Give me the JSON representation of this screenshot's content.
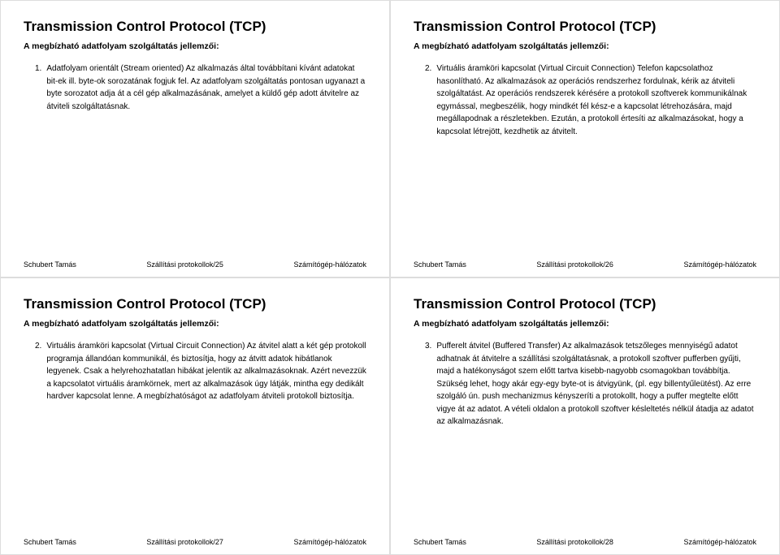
{
  "common": {
    "title": "Transmission Control Protocol (TCP)",
    "subtitle": "A megbízható adatfolyam szolgáltatás jellemzői:",
    "footer_author": "Schubert Tamás",
    "footer_right": "Számítógép-hálózatok",
    "footer_center_prefix": "Szállítási protokollok/"
  },
  "slides": [
    {
      "page": "25",
      "num": "1.",
      "text": "Adatfolyam orientált (Stream oriented)\nAz alkalmazás által továbbítani kívánt adatokat bit-ek ill. byte-ok sorozatának fogjuk fel.\nAz adatfolyam szolgáltatás pontosan ugyanazt a byte sorozatot adja át a cél gép alkalmazásának, amelyet a küldő gép adott átvitelre az átviteli szolgáltatásnak."
    },
    {
      "page": "26",
      "num": "2.",
      "text": "Virtuális áramköri kapcsolat (Virtual Circuit Connection)\nTelefon kapcsolathoz hasonlítható.\nAz alkalmazások az operációs rendszerhez fordulnak, kérik az átviteli szolgáltatást.\nAz operációs rendszerek kérésére a protokoll szoftverek kommunikálnak egymással, megbeszélik, hogy mindkét fél kész-e a kapcsolat létrehozására, majd megállapodnak a részletekben. Ezután, a protokoll értesíti az alkalmazásokat, hogy a kapcsolat létrejött, kezdhetik az átvitelt."
    },
    {
      "page": "27",
      "num": "2.",
      "text": "Virtuális áramköri kapcsolat (Virtual Circuit Connection)\nAz átvitel alatt a két gép protokoll programja állandóan kommunikál, és biztosítja, hogy az átvitt adatok hibátlanok legyenek.\nCsak a helyrehozhatatlan hibákat jelentik az alkalmazásoknak.\nAzért nevezzük a kapcsolatot virtuális áramkörnek, mert az alkalmazások úgy látják, mintha egy dedikált hardver kapcsolat lenne.\nA megbízhatóságot az adatfolyam átviteli protokoll biztosítja."
    },
    {
      "page": "28",
      "num": "3.",
      "text": "Pufferelt átvitel (Buffered Transfer)\nAz alkalmazások tetszőleges mennyiségű adatot adhatnak át átvitelre a szállítási szolgáltatásnak, a protokoll szoftver pufferben gyűjti, majd a hatékonyságot szem előtt tartva kisebb-nagyobb csomagokban továbbítja.\nSzükség lehet, hogy akár egy-egy byte-ot is átvigyünk, (pl. egy billentyűleütést). Az erre szolgáló ún. push mechanizmus kényszeríti a protokollt, hogy a puffer megtelte előtt vigye át az adatot.\nA vételi oldalon a protokoll szoftver késleltetés nélkül átadja az adatot az alkalmazásnak."
    }
  ]
}
